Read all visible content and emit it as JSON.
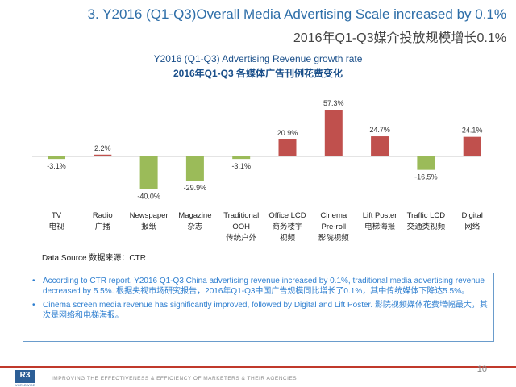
{
  "slide": {
    "title_en": "3. Y2016 (Q1-Q3)Overall Media Advertising  Scale increased by 0.1%",
    "title_cn": "2016年Q1-Q3媒介投放规模增长0.1%",
    "data_source": "Data Source 数据来源：CTR",
    "notes": [
      "According to CTR report, Y2016 Q1-Q3 China advertising revenue  increased by 0.1%, traditional media advertising revenue decreased by 5.5%. 根据央视市场研究报告，2016年Q1-Q3中国广告规模同比增长了0.1%，其中传统媒体下降达5.5%。",
      "Cinema screen media revenue has significantly improved, followed by Digital and Lift Poster. 影院视频媒体花费增幅最大，其次是网络和电梯海报。"
    ],
    "footer_tagline": "IMPROVING THE EFFECTIVENESS & EFFICIENCY OF MARKETERS & THEIR AGENCIES",
    "logo_text": "R3",
    "logo_sub": "WORLDWIDE",
    "page_number": "10"
  },
  "chart_data": {
    "type": "bar",
    "title": "Y2016 (Q1-Q3) Advertising Revenue growth rate",
    "subtitle": "2016年Q1-Q3 各媒体广告刊例花费变化",
    "categories_en": [
      "TV",
      "Radio",
      "Newspaper",
      "Magazine",
      "Traditional OOH",
      "Office LCD",
      "Cinema Pre-roll",
      "Lift Poster",
      "Traffic LCD",
      "Digital"
    ],
    "categories_cn": [
      "电视",
      "广播",
      "报纸",
      "杂志",
      "传统户外",
      "商务楼宇视频",
      "影院视频",
      "电梯海报",
      "交通类视频",
      "网络"
    ],
    "values": [
      -3.1,
      2.2,
      -40.0,
      -29.9,
      -3.1,
      20.9,
      57.3,
      24.7,
      -16.5,
      24.1
    ],
    "data_labels": [
      "-3.1%",
      "2.2%",
      "-40.0%",
      "-29.9%",
      "-3.1%",
      "20.9%",
      "57.3%",
      "24.7%",
      "-16.5%",
      "24.1%"
    ],
    "colors": {
      "positive": "#c0504d",
      "negative": "#9bbb59"
    },
    "gridlines": false
  }
}
